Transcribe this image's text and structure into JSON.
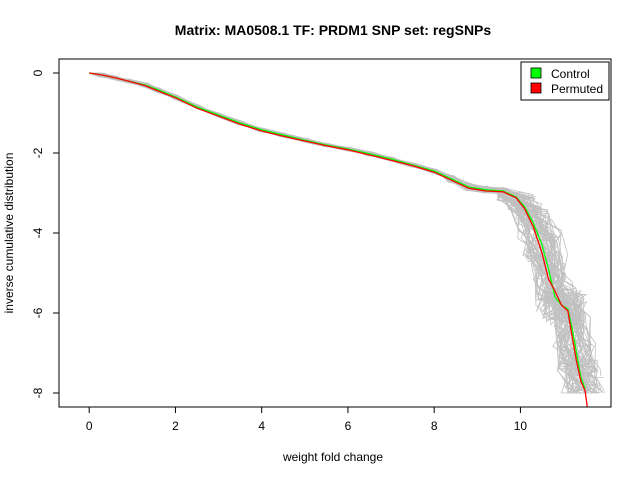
{
  "chart_data": {
    "type": "line",
    "title": "Matrix: MA0508.1 TF: PRDM1 SNP set: regSNPs",
    "xlabel": "weight fold change",
    "ylabel": "inverse cumulative distribution",
    "xlim": [
      -0.7,
      12.1
    ],
    "ylim": [
      -8.35,
      0.35
    ],
    "x_ticks": [
      0,
      2,
      4,
      6,
      8,
      10
    ],
    "y_ticks": [
      0,
      -2,
      -4,
      -6,
      -8
    ],
    "grid": false,
    "legend_position": "top-right",
    "legend": [
      "Control",
      "Permuted"
    ],
    "series": [
      {
        "name": "Control",
        "color": "#00ff00",
        "x": [
          0.0,
          0.3,
          0.6,
          0.9,
          1.3,
          1.6,
          2.0,
          2.5,
          3.0,
          3.5,
          4.0,
          4.5,
          5.0,
          5.5,
          6.0,
          6.5,
          7.0,
          7.5,
          8.0,
          8.4,
          8.8,
          9.2,
          9.6,
          9.9,
          10.1,
          10.3,
          10.5,
          10.65,
          10.8,
          10.95,
          11.1,
          11.2,
          11.3,
          11.4,
          11.5
        ],
        "values": [
          0.0,
          -0.05,
          -0.12,
          -0.2,
          -0.3,
          -0.42,
          -0.6,
          -0.85,
          -1.05,
          -1.25,
          -1.42,
          -1.55,
          -1.68,
          -1.8,
          -1.9,
          -2.02,
          -2.15,
          -2.3,
          -2.45,
          -2.65,
          -2.85,
          -2.92,
          -2.95,
          -3.1,
          -3.35,
          -3.75,
          -4.3,
          -4.9,
          -5.6,
          -5.8,
          -5.9,
          -6.4,
          -7.0,
          -7.6,
          -7.9
        ]
      },
      {
        "name": "Permuted",
        "color": "#ff0000",
        "x": [
          0.0,
          0.3,
          0.6,
          0.9,
          1.3,
          1.6,
          2.0,
          2.5,
          3.0,
          3.5,
          4.0,
          4.5,
          5.0,
          5.5,
          6.0,
          6.5,
          7.0,
          7.5,
          8.0,
          8.4,
          8.8,
          9.2,
          9.6,
          9.9,
          10.1,
          10.3,
          10.5,
          10.65,
          10.8,
          10.95,
          11.1,
          11.2,
          11.3,
          11.4,
          11.5,
          11.55
        ],
        "values": [
          0.0,
          -0.05,
          -0.12,
          -0.2,
          -0.32,
          -0.45,
          -0.62,
          -0.88,
          -1.08,
          -1.28,
          -1.45,
          -1.58,
          -1.7,
          -1.82,
          -1.92,
          -2.05,
          -2.18,
          -2.32,
          -2.48,
          -2.68,
          -2.88,
          -2.95,
          -2.97,
          -3.12,
          -3.4,
          -3.85,
          -4.5,
          -5.15,
          -5.45,
          -5.8,
          -5.95,
          -6.6,
          -7.2,
          -7.7,
          -7.95,
          -8.35
        ]
      }
    ],
    "background_curves_color": "#c0c0c0"
  }
}
